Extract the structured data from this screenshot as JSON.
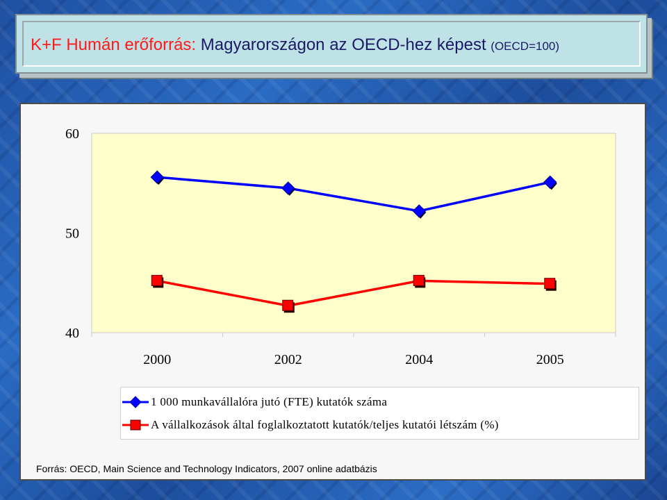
{
  "title": {
    "part1": "K+F Humán erőforrás:",
    "part2": "Magyarországon az OECD-hez képest",
    "part3": "(OECD=100)"
  },
  "source": "Forrás: OECD, Main Science and Technology Indicators, 2007 online adatbázis",
  "colors": {
    "series1": "#0000ff",
    "series2": "#ff0000",
    "plot_bg": "#ffffcc",
    "title_red": "#ff1a1a",
    "title_blue": "#1a1a66"
  },
  "chart_data": {
    "type": "line",
    "categories": [
      "2000",
      "2002",
      "2004",
      "2005"
    ],
    "ylim": [
      40,
      60
    ],
    "yticks": [
      "40",
      "50",
      "60"
    ],
    "grid": false,
    "legend_position": "bottom",
    "series": [
      {
        "name": "1 000 munkavállalóra jutó (FTE) kutatók száma",
        "values": [
          55.6,
          54.5,
          52.2,
          55.1
        ],
        "color": "#0000ff",
        "marker": "diamond"
      },
      {
        "name": "A vállalkozások által foglalkoztatott kutatók/teljes kutatói létszám (%)",
        "values": [
          45.2,
          42.7,
          45.2,
          44.9
        ],
        "color": "#ff0000",
        "marker": "square"
      }
    ]
  }
}
